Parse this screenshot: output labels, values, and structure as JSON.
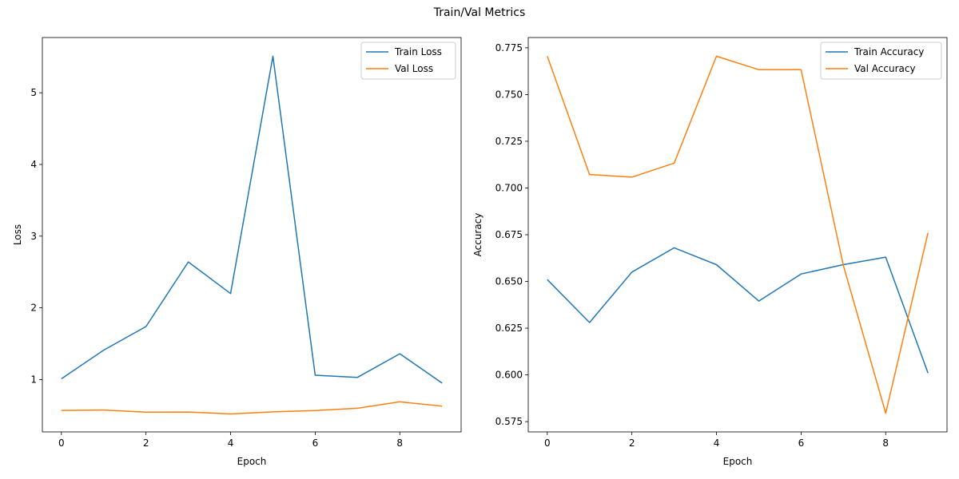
{
  "figure": {
    "suptitle": "Train/Val Metrics"
  },
  "colors": {
    "train": "#1f77b4",
    "val": "#ff7f0e"
  },
  "chart_data": [
    {
      "type": "line",
      "xlabel": "Epoch",
      "ylabel": "Loss",
      "x": [
        0,
        1,
        2,
        3,
        4,
        5,
        6,
        7,
        8,
        9
      ],
      "xlim": [
        -0.45,
        9.45
      ],
      "ylim": [
        0.27,
        5.77
      ],
      "xticks": [
        0,
        2,
        4,
        6,
        8
      ],
      "xtick_labels": [
        "0",
        "2",
        "4",
        "6",
        "8"
      ],
      "yticks": [
        1,
        2,
        3,
        4,
        5
      ],
      "ytick_labels": [
        "1",
        "2",
        "3",
        "4",
        "5"
      ],
      "legend": "top-right",
      "grid": false,
      "series": [
        {
          "name": "Train Loss",
          "color": "#1f77b4",
          "values": [
            1.01,
            1.41,
            1.74,
            2.64,
            2.2,
            5.51,
            1.06,
            1.03,
            1.36,
            0.95
          ]
        },
        {
          "name": "Val Loss",
          "color": "#ff7f0e",
          "values": [
            0.57,
            0.575,
            0.545,
            0.547,
            0.52,
            0.55,
            0.568,
            0.6,
            0.69,
            0.63
          ]
        }
      ]
    },
    {
      "type": "line",
      "xlabel": "Epoch",
      "ylabel": "Accuracy",
      "x": [
        0,
        1,
        2,
        3,
        4,
        5,
        6,
        7,
        8,
        9
      ],
      "xlim": [
        -0.45,
        9.45
      ],
      "ylim": [
        0.5695,
        0.7805
      ],
      "xticks": [
        0,
        2,
        4,
        6,
        8
      ],
      "xtick_labels": [
        "0",
        "2",
        "4",
        "6",
        "8"
      ],
      "yticks": [
        0.575,
        0.6,
        0.625,
        0.65,
        0.675,
        0.7,
        0.725,
        0.75,
        0.775
      ],
      "ytick_labels": [
        "0.575",
        "0.600",
        "0.625",
        "0.650",
        "0.675",
        "0.700",
        "0.725",
        "0.750",
        "0.775"
      ],
      "legend": "top-right",
      "grid": false,
      "series": [
        {
          "name": "Train Accuracy",
          "color": "#1f77b4",
          "values": [
            0.651,
            0.628,
            0.655,
            0.668,
            0.659,
            0.6395,
            0.654,
            0.659,
            0.663,
            0.601
          ]
        },
        {
          "name": "Val Accuracy",
          "color": "#ff7f0e",
          "values": [
            0.7705,
            0.7072,
            0.7058,
            0.7133,
            0.7705,
            0.7633,
            0.7633,
            0.6585,
            0.5795,
            0.676
          ]
        }
      ]
    }
  ]
}
